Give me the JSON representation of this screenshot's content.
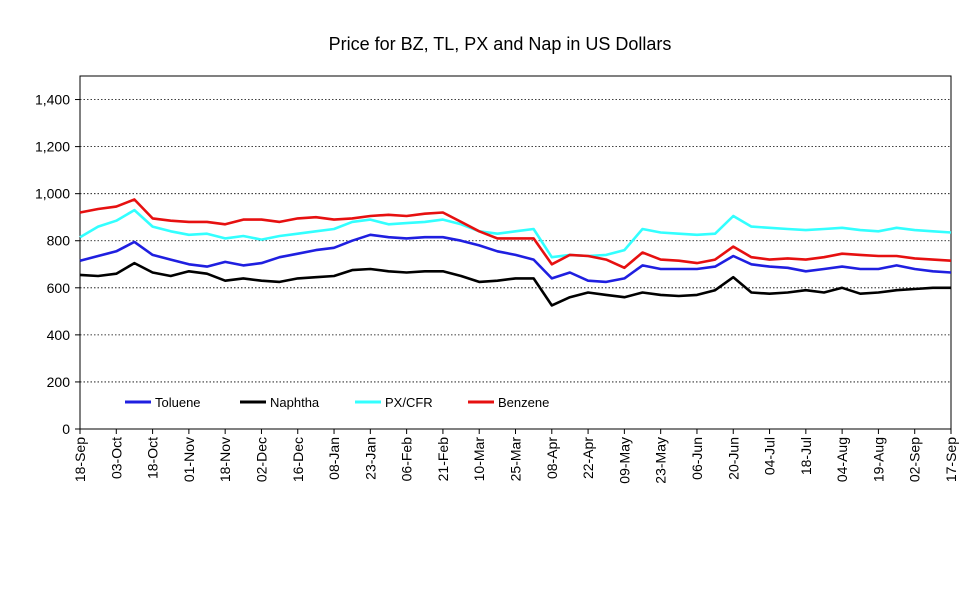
{
  "chart_data": {
    "type": "line",
    "title": "Price for BZ, TL, PX and Nap in US Dollars",
    "xlabel": "",
    "ylabel": "",
    "ylim": [
      0,
      1500
    ],
    "yticks": [
      0,
      200,
      400,
      600,
      800,
      "1,000",
      "1,200",
      "1,400"
    ],
    "ytick_values": [
      0,
      200,
      400,
      600,
      800,
      1000,
      1200,
      1400
    ],
    "grid": "horizontal dotted",
    "legend_position": "bottom-left inside",
    "xtick_labels": [
      "18-Sep",
      "03-Oct",
      "18-Oct",
      "01-Nov",
      "18-Nov",
      "02-Dec",
      "16-Dec",
      "08-Jan",
      "23-Jan",
      "06-Feb",
      "21-Feb",
      "10-Mar",
      "25-Mar",
      "08-Apr",
      "22-Apr",
      "09-May",
      "23-May",
      "06-Jun",
      "20-Jun",
      "04-Jul",
      "18-Jul",
      "04-Aug",
      "19-Aug",
      "02-Sep",
      "17-Sep"
    ],
    "x_index": [
      0,
      1,
      2,
      3,
      4,
      5,
      6,
      7,
      8,
      9,
      10,
      11,
      12,
      13,
      14,
      15,
      16,
      17,
      18,
      19,
      20,
      21,
      22,
      23,
      24,
      25,
      26,
      27,
      28,
      29,
      30,
      31,
      32,
      33,
      34,
      35,
      36,
      37,
      38,
      39,
      40,
      41,
      42,
      43,
      44,
      45,
      46,
      47,
      48
    ],
    "series": [
      {
        "name": "Toluene",
        "color": "#1f1fe0",
        "values": [
          715,
          735,
          755,
          795,
          740,
          720,
          700,
          690,
          710,
          695,
          705,
          730,
          745,
          760,
          770,
          800,
          825,
          815,
          810,
          815,
          815,
          800,
          780,
          755,
          740,
          720,
          640,
          665,
          630,
          625,
          640,
          695,
          680,
          680,
          680,
          690,
          735,
          700,
          690,
          685,
          670,
          680,
          690,
          680,
          680,
          695,
          680,
          670,
          665
        ]
      },
      {
        "name": "Naphtha",
        "color": "#000000",
        "values": [
          655,
          650,
          660,
          705,
          665,
          650,
          670,
          660,
          630,
          640,
          630,
          625,
          640,
          645,
          650,
          675,
          680,
          670,
          665,
          670,
          670,
          650,
          625,
          630,
          640,
          640,
          525,
          560,
          580,
          570,
          560,
          580,
          570,
          565,
          570,
          590,
          645,
          580,
          575,
          580,
          590,
          580,
          600,
          575,
          580,
          590,
          595,
          600,
          600
        ]
      },
      {
        "name": "PX/CFR",
        "color": "#33ffff",
        "values": [
          815,
          860,
          885,
          930,
          860,
          840,
          825,
          830,
          810,
          820,
          805,
          820,
          830,
          840,
          850,
          880,
          890,
          870,
          875,
          880,
          890,
          870,
          840,
          830,
          840,
          850,
          730,
          740,
          735,
          740,
          760,
          850,
          835,
          830,
          825,
          830,
          905,
          860,
          855,
          850,
          845,
          850,
          855,
          845,
          840,
          855,
          845,
          840,
          835
        ]
      },
      {
        "name": "Benzene",
        "color": "#e61010",
        "values": [
          920,
          935,
          945,
          975,
          895,
          885,
          880,
          880,
          870,
          890,
          890,
          880,
          895,
          900,
          890,
          895,
          905,
          910,
          905,
          915,
          920,
          880,
          840,
          810,
          810,
          810,
          700,
          740,
          735,
          720,
          685,
          750,
          720,
          715,
          705,
          720,
          775,
          730,
          720,
          725,
          720,
          730,
          745,
          740,
          735,
          735,
          725,
          720,
          715
        ]
      }
    ]
  }
}
